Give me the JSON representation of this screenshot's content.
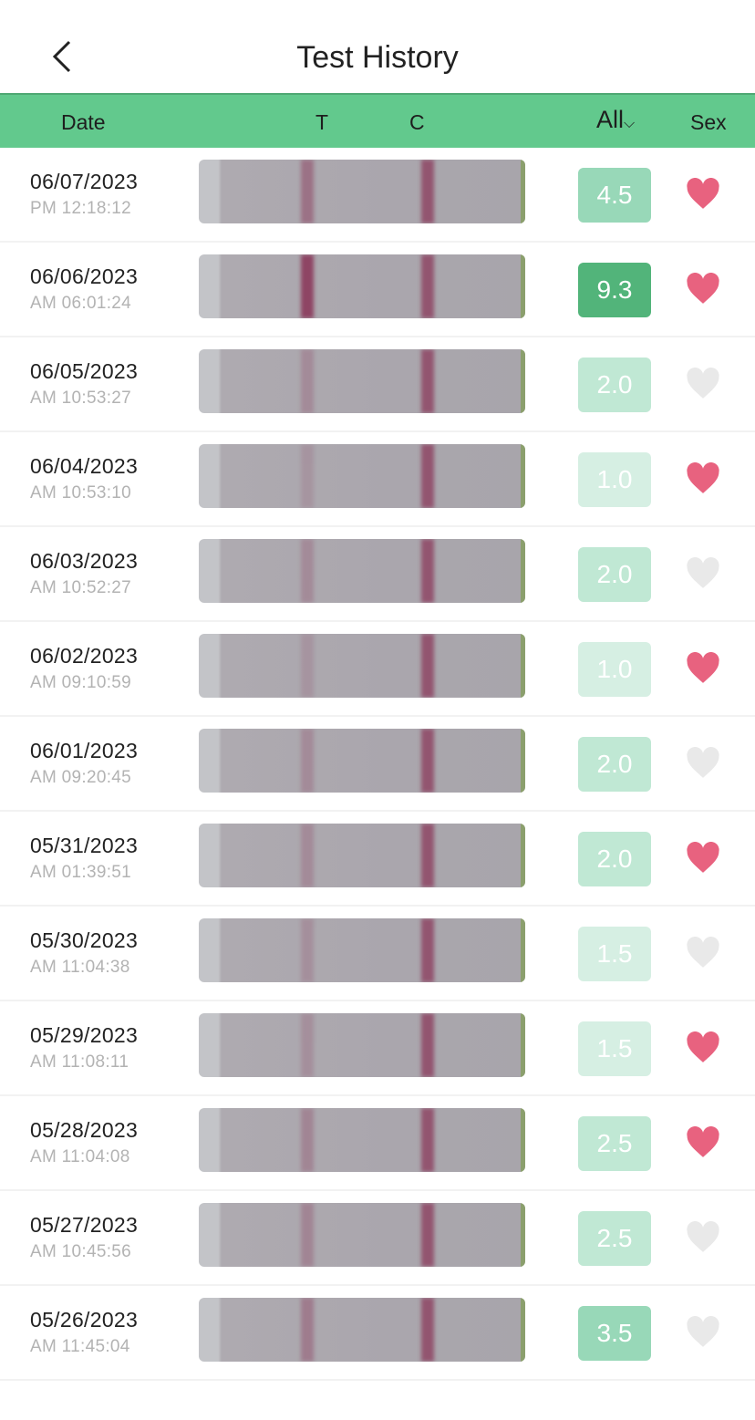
{
  "header": {
    "title": "Test History",
    "back_icon": "chevron-left-icon"
  },
  "columns": {
    "date": "Date",
    "t": "T",
    "c": "C",
    "filter": "All",
    "sex": "Sex"
  },
  "colors": {
    "accent": "#62c98d",
    "heart_on": "#e8627f",
    "heart_off": "#e9e9e9"
  },
  "rows": [
    {
      "date": "06/07/2023",
      "time": "PM 12:18:12",
      "value": "4.5",
      "sex": true
    },
    {
      "date": "06/06/2023",
      "time": "AM 06:01:24",
      "value": "9.3",
      "sex": true
    },
    {
      "date": "06/05/2023",
      "time": "AM 10:53:27",
      "value": "2.0",
      "sex": false
    },
    {
      "date": "06/04/2023",
      "time": "AM 10:53:10",
      "value": "1.0",
      "sex": true
    },
    {
      "date": "06/03/2023",
      "time": "AM 10:52:27",
      "value": "2.0",
      "sex": false
    },
    {
      "date": "06/02/2023",
      "time": "AM 09:10:59",
      "value": "1.0",
      "sex": true
    },
    {
      "date": "06/01/2023",
      "time": "AM 09:20:45",
      "value": "2.0",
      "sex": false
    },
    {
      "date": "05/31/2023",
      "time": "AM 01:39:51",
      "value": "2.0",
      "sex": true
    },
    {
      "date": "05/30/2023",
      "time": "AM 11:04:38",
      "value": "1.5",
      "sex": false
    },
    {
      "date": "05/29/2023",
      "time": "AM 11:08:11",
      "value": "1.5",
      "sex": true
    },
    {
      "date": "05/28/2023",
      "time": "AM 11:04:08",
      "value": "2.5",
      "sex": true
    },
    {
      "date": "05/27/2023",
      "time": "AM 10:45:56",
      "value": "2.5",
      "sex": false
    },
    {
      "date": "05/26/2023",
      "time": "AM 11:45:04",
      "value": "3.5",
      "sex": false
    }
  ]
}
